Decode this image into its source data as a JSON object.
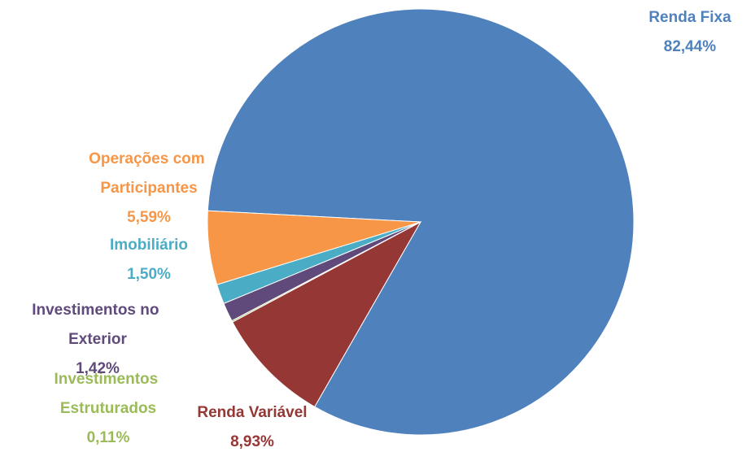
{
  "chart_data": {
    "type": "pie",
    "categories": [
      "Renda Fixa",
      "Renda Variável",
      "Investimentos Estruturados",
      "Investimentos no Exterior",
      "Imobiliário",
      "Operações com Participantes"
    ],
    "values": [
      82.44,
      8.93,
      0.11,
      1.42,
      1.5,
      5.59
    ],
    "value_labels": [
      "82,44%",
      "8,93%",
      "0,11%",
      "1,42%",
      "1,50%",
      "5,59%"
    ],
    "colors": [
      "#4f81bd",
      "#953735",
      "#9bbb59",
      "#604a7b",
      "#4bacc6",
      "#f79646"
    ]
  }
}
